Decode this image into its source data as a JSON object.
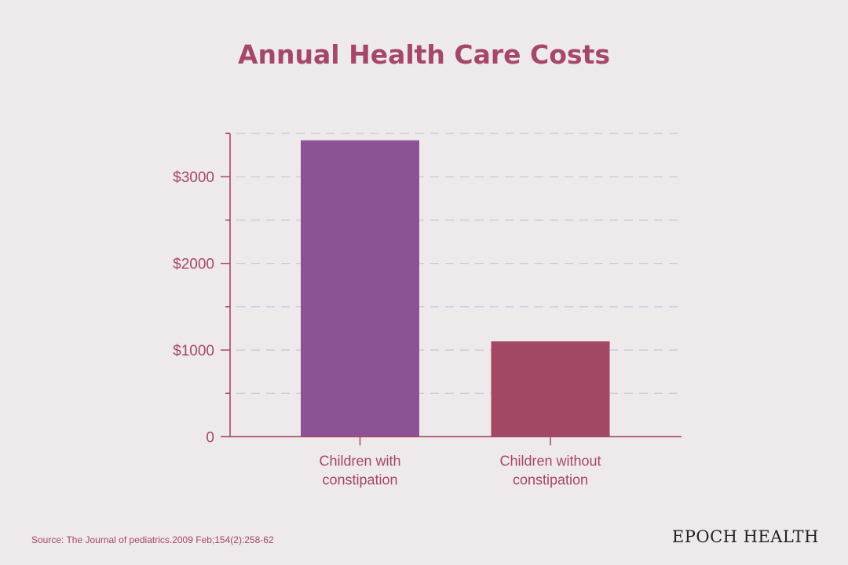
{
  "chart_data": {
    "type": "bar",
    "title": "Annual Health Care Costs",
    "categories": [
      "Children with constipation",
      "Children without constipation"
    ],
    "category_label_lines": [
      [
        "Children with",
        "constipation"
      ],
      [
        "Children without",
        "constipation"
      ]
    ],
    "values": [
      3420,
      1100
    ],
    "bar_colors": [
      "#8b5396",
      "#a34862"
    ],
    "xlabel": "",
    "ylabel": "",
    "ylim": [
      0,
      3500
    ],
    "yticks": [
      0,
      1000,
      2000,
      3000
    ],
    "ytick_labels": [
      "0",
      "$1000",
      "$2000",
      "$3000"
    ],
    "grid": true,
    "grid_step": 500,
    "axis_color": "#a5476a",
    "grid_color": "#cfc4de"
  },
  "source": "Source: The Journal of pediatrics.2009 Feb;154(2):258-62",
  "logo": "EPOCH HEALTH"
}
